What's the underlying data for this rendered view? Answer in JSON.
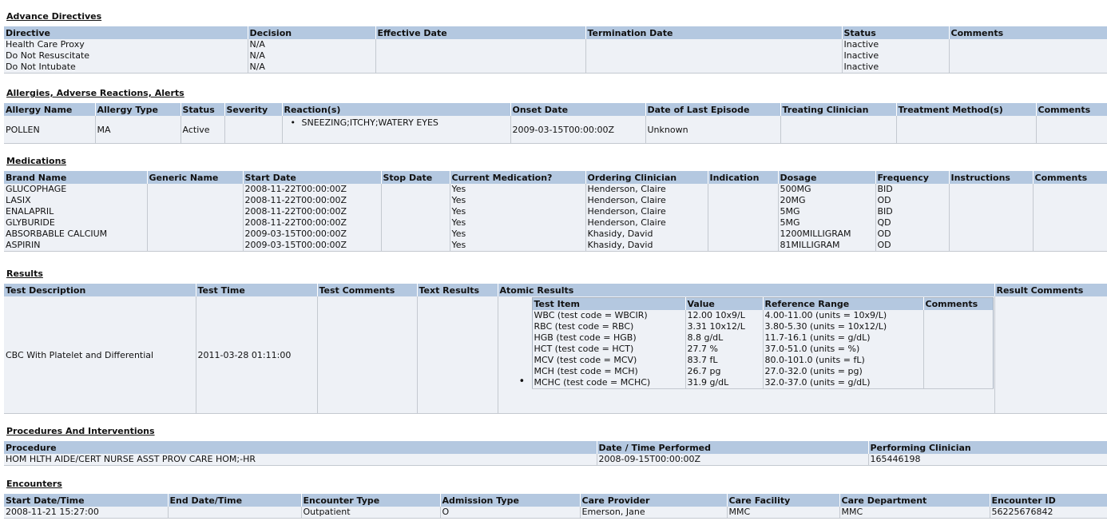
{
  "advance_directives": {
    "title": "Advance Directives",
    "headers": [
      "Directive",
      "Decision",
      "Effective Date",
      "Termination Date",
      "Status",
      "Comments"
    ],
    "rows": [
      [
        "Health Care Proxy",
        "N/A",
        "",
        "",
        "Inactive",
        ""
      ],
      [
        "Do Not Resuscitate",
        "N/A",
        "",
        "",
        "Inactive",
        ""
      ],
      [
        "Do Not Intubate",
        "N/A",
        "",
        "",
        "Inactive",
        ""
      ]
    ]
  },
  "allergies": {
    "title": "Allergies, Adverse Reactions, Alerts",
    "headers": [
      "Allergy Name",
      "Allergy Type",
      "Status",
      "Severity",
      "Reaction(s)",
      "Onset Date",
      "Date of Last Episode",
      "Treating Clinician",
      "Treatment Method(s)",
      "Comments"
    ],
    "row": {
      "name": "POLLEN",
      "type": "MA",
      "status": "Active",
      "severity": "",
      "reaction": "SNEEZING;ITCHY;WATERY EYES",
      "onset": "2009-03-15T00:00:00Z",
      "last_episode": "Unknown",
      "clinician": "",
      "method": "",
      "comments": ""
    }
  },
  "medications": {
    "title": "Medications",
    "headers": [
      "Brand Name",
      "Generic Name",
      "Start Date",
      "Stop Date",
      "Current Medication?",
      "Ordering Clinician",
      "Indication",
      "Dosage",
      "Frequency",
      "Instructions",
      "Comments"
    ],
    "rows": [
      [
        "GLUCOPHAGE",
        "",
        "2008-11-22T00:00:00Z",
        "",
        "Yes",
        "Henderson, Claire",
        "",
        "500MG",
        "BID",
        "",
        ""
      ],
      [
        "LASIX",
        "",
        "2008-11-22T00:00:00Z",
        "",
        "Yes",
        "Henderson, Claire",
        "",
        "20MG",
        "OD",
        "",
        ""
      ],
      [
        "ENALAPRIL",
        "",
        "2008-11-22T00:00:00Z",
        "",
        "Yes",
        "Henderson, Claire",
        "",
        "5MG",
        "BID",
        "",
        ""
      ],
      [
        "GLYBURIDE",
        "",
        "2008-11-22T00:00:00Z",
        "",
        "Yes",
        "Henderson, Claire",
        "",
        "5MG",
        "QD",
        "",
        ""
      ],
      [
        "ABSORBABLE CALCIUM",
        "",
        "2009-03-15T00:00:00Z",
        "",
        "Yes",
        "Khasidy, David",
        "",
        "1200MILLIGRAM",
        "OD",
        "",
        ""
      ],
      [
        "ASPIRIN",
        "",
        "2009-03-15T00:00:00Z",
        "",
        "Yes",
        "Khasidy, David",
        "",
        "81MILLIGRAM",
        "OD",
        "",
        ""
      ]
    ]
  },
  "results": {
    "title": "Results",
    "headers": [
      "Test Description",
      "Test Time",
      "Test Comments",
      "Text Results",
      "Atomic Results",
      "Result Comments"
    ],
    "row": {
      "description": "CBC With Platelet and Differential",
      "time": "2011-03-28 01:11:00",
      "comments": "",
      "text_results": "",
      "result_comments": ""
    },
    "atomic_headers": [
      "Test Item",
      "Value",
      "Reference Range",
      "Comments"
    ],
    "atomic_rows": [
      [
        "WBC (test code = WBCIR)",
        "12.00 10x9/L",
        "4.00-11.00 (units = 10x9/L)",
        ""
      ],
      [
        "RBC (test code = RBC)",
        "3.31 10x12/L",
        "3.80-5.30 (units = 10x12/L)",
        ""
      ],
      [
        "HGB (test code = HGB)",
        "8.8 g/dL",
        "11.7-16.1 (units = g/dL)",
        ""
      ],
      [
        "HCT (test code = HCT)",
        "27.7 %",
        "37.0-51.0 (units = %)",
        ""
      ],
      [
        "MCV (test code = MCV)",
        "83.7 fL",
        "80.0-101.0 (units = fL)",
        ""
      ],
      [
        "MCH (test code = MCH)",
        "26.7 pg",
        "27.0-32.0 (units = pg)",
        ""
      ],
      [
        "MCHC (test code = MCHC)",
        "31.9 g/dL",
        "32.0-37.0 (units = g/dL)",
        ""
      ]
    ]
  },
  "procedures": {
    "title": "Procedures And Interventions",
    "headers": [
      "Procedure",
      "Date / Time Performed",
      "Performing Clinician"
    ],
    "rows": [
      [
        "HOM HLTH AIDE/CERT NURSE ASST PROV CARE HOM;-HR",
        "2008-09-15T00:00:00Z",
        "165446198"
      ]
    ]
  },
  "encounters": {
    "title": "Encounters",
    "headers": [
      "Start Date/Time",
      "End Date/Time",
      "Encounter Type",
      "Admission Type",
      "Care Provider",
      "Care Facility",
      "Care Department",
      "Encounter ID"
    ],
    "rows": [
      [
        "2008-11-21 15:27:00",
        "",
        "Outpatient",
        "O",
        "Emerson, Jane",
        "MMC",
        "MMC",
        "56225676842"
      ]
    ]
  },
  "colors": {
    "header_bg": "#b4c8e0",
    "row_bg": "#eef1f6"
  }
}
